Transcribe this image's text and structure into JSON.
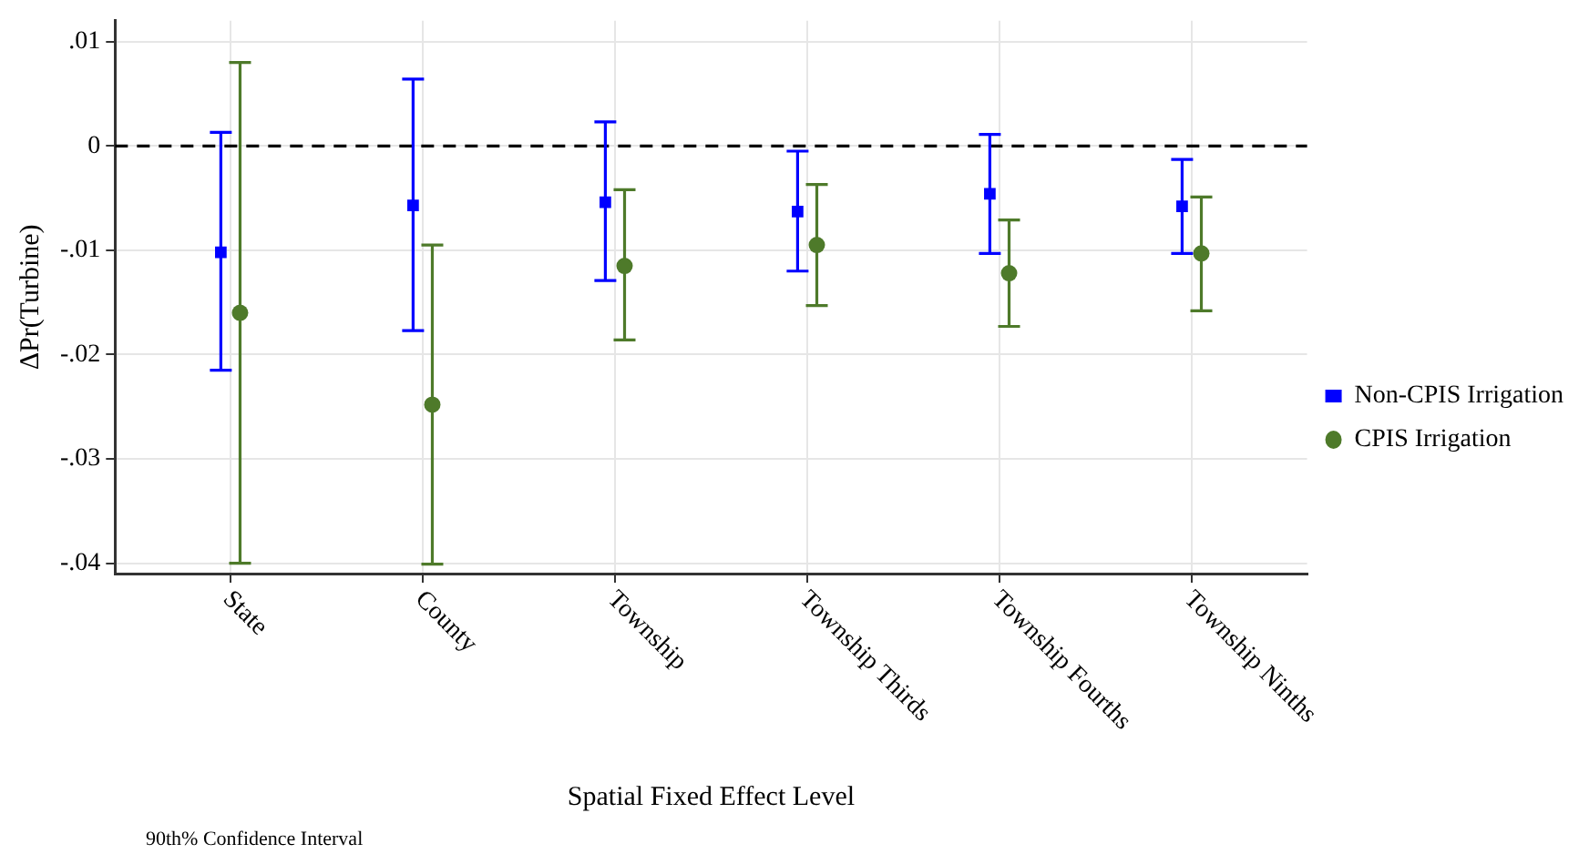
{
  "chart_data": {
    "type": "scatter",
    "xlabel": "Spatial Fixed Effect Level",
    "ylabel": "ΔPr(Turbine)",
    "categories": [
      "State",
      "County",
      "Township",
      "Township Thirds",
      "Township Fourths",
      "Township Ninths"
    ],
    "series": [
      {
        "name": "Non-CPIS Irrigation",
        "color": "#0000ff",
        "marker": "square",
        "values": [
          -0.0102,
          -0.0057,
          -0.0054,
          -0.0063,
          -0.0046,
          -0.0058
        ],
        "errors": [
          [
            -0.0215,
            0.0013
          ],
          [
            -0.0177,
            0.0064
          ],
          [
            -0.0129,
            0.0023
          ],
          [
            -0.012,
            -0.0005
          ],
          [
            -0.0103,
            0.0011
          ],
          [
            -0.0103,
            -0.0013
          ]
        ]
      },
      {
        "name": "CPIS Irrigation",
        "color": "#4e7a2a",
        "marker": "circle",
        "values": [
          -0.016,
          -0.0248,
          -0.0115,
          -0.0095,
          -0.0122,
          -0.0103
        ],
        "errors": [
          [
            -0.04,
            0.008
          ],
          [
            -0.0401,
            -0.0095
          ],
          [
            -0.0186,
            -0.0042
          ],
          [
            -0.0153,
            -0.0037
          ],
          [
            -0.0173,
            -0.0071
          ],
          [
            -0.0158,
            -0.0049
          ]
        ]
      }
    ],
    "ylim": [
      -0.041,
      0.012
    ],
    "yticks": [
      {
        "value": 0.01,
        "label": ".01"
      },
      {
        "value": 0,
        "label": "0"
      },
      {
        "value": -0.01,
        "label": "-.01"
      },
      {
        "value": -0.02,
        "label": "-.02"
      },
      {
        "value": -0.03,
        "label": "-.03"
      },
      {
        "value": -0.04,
        "label": "-.04"
      }
    ],
    "ref_lines": [
      {
        "axis": "y",
        "value": 0,
        "color": "#000000",
        "line_style": "dashed"
      }
    ],
    "grid": true,
    "legend": "right",
    "annotations": [
      "90th% Confidence Interval"
    ]
  }
}
